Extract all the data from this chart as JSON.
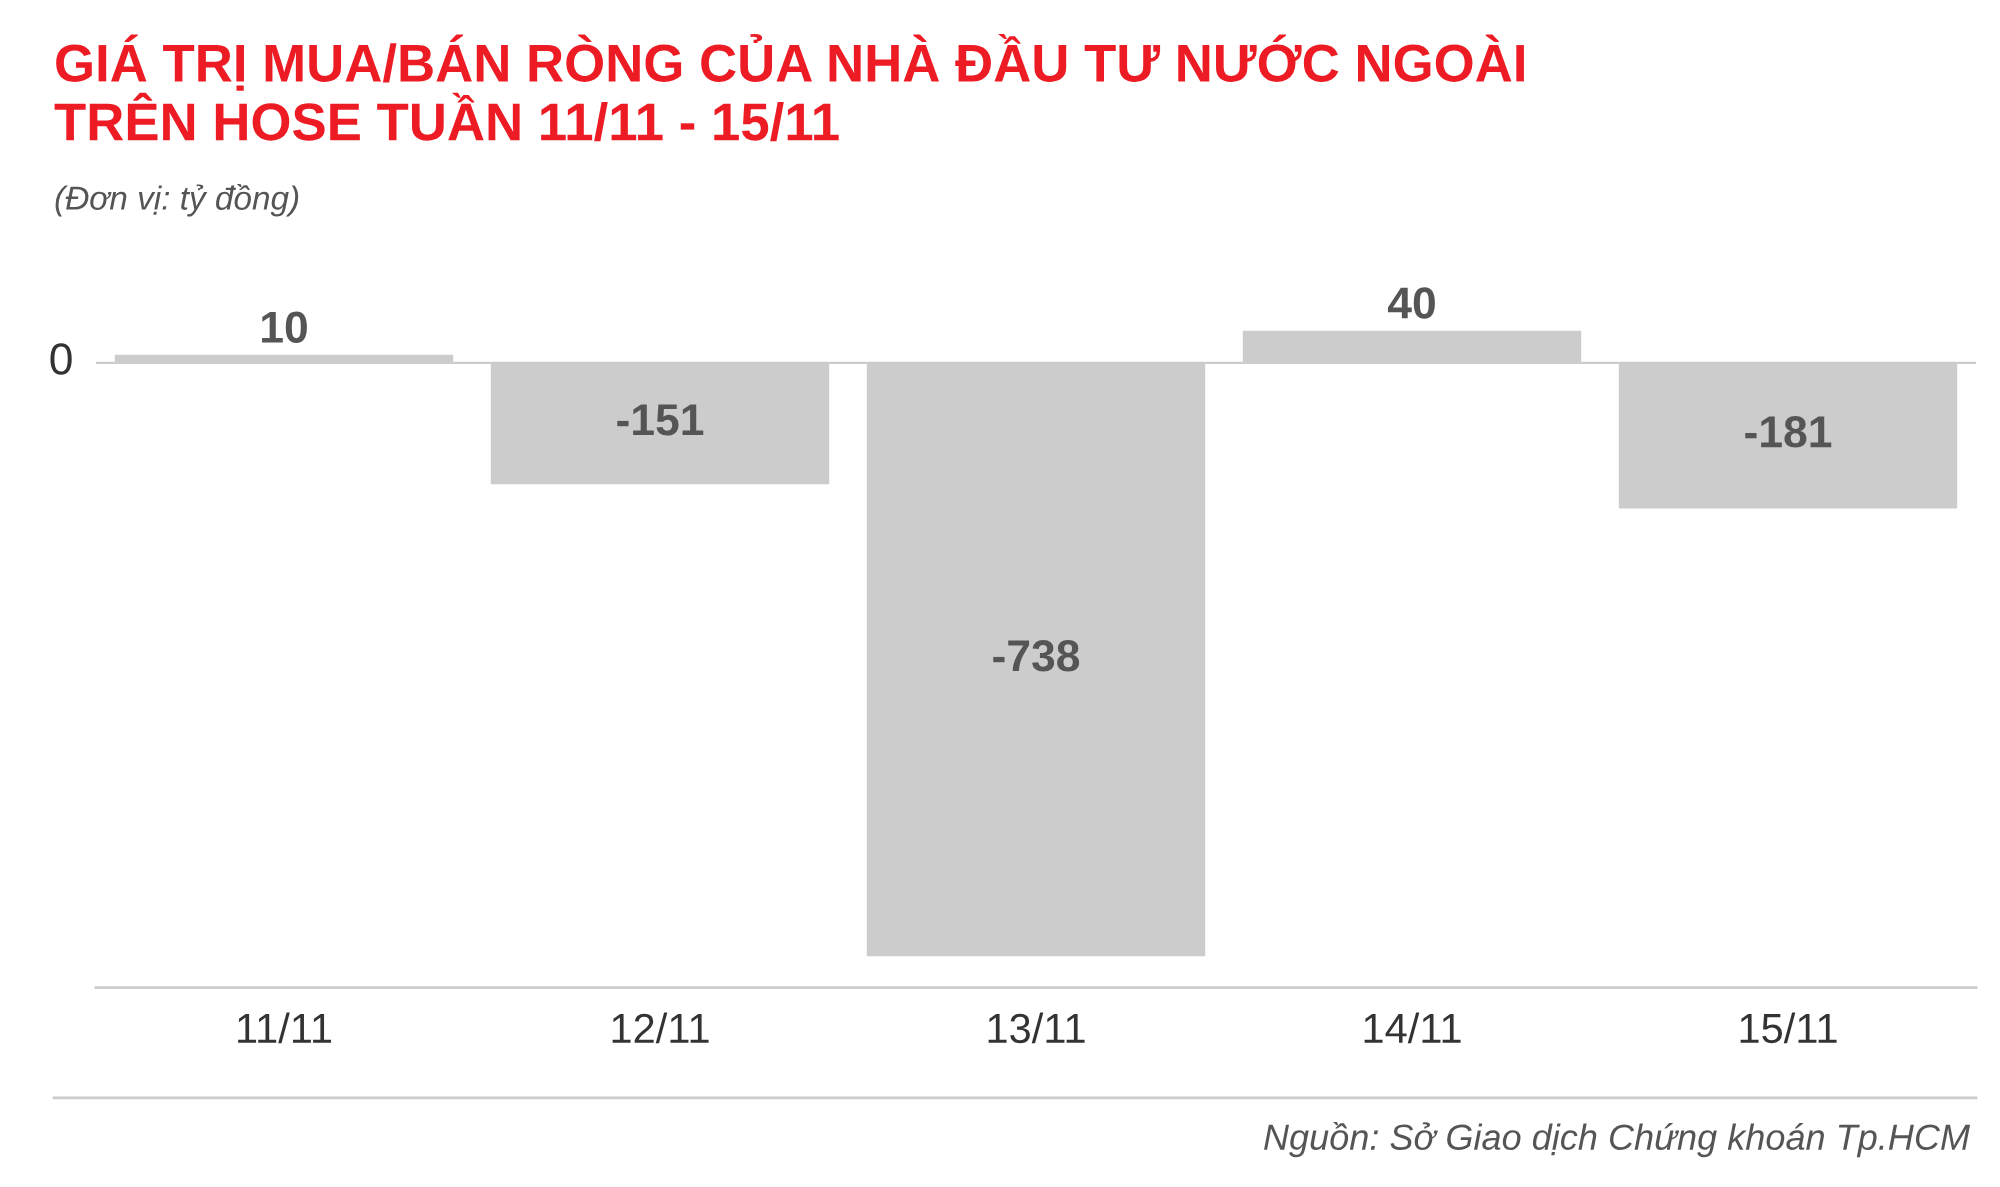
{
  "chart_data": {
    "type": "bar",
    "title": "GIÁ TRỊ MUA/BÁN RÒNG CỦA NHÀ ĐẦU TƯ NƯỚC NGOÀI\nTRÊN HOSE TUẦN 11/11 - 15/11",
    "subtitle": "(Đơn vị: tỷ đồng)",
    "categories": [
      "11/11",
      "12/11",
      "13/11",
      "14/11",
      "15/11"
    ],
    "values": [
      10,
      -151,
      -738,
      40,
      -181
    ],
    "color": "#cccccc",
    "data_labels": true,
    "ref_lines": [
      {
        "axis": "y",
        "value": 0,
        "label": "0",
        "color": "#cccccc"
      }
    ],
    "annotations": [
      "Nguồn: Sở Giao dịch Chứng khoán Tp.HCM"
    ]
  }
}
